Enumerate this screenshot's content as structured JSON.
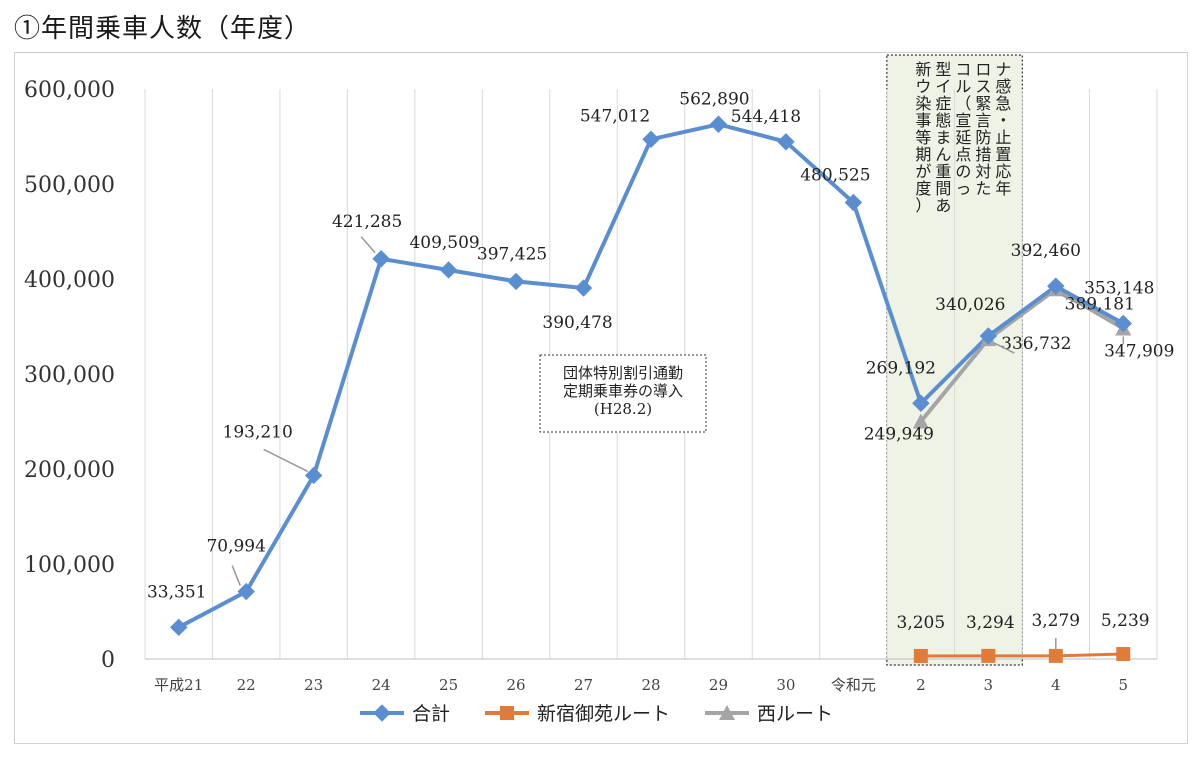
{
  "page": {
    "title": "①年間乗車人数（年度）"
  },
  "chart_data": {
    "type": "line",
    "title": "",
    "xlabel": "",
    "ylabel": "",
    "ylim": [
      0,
      600000
    ],
    "yticks": [
      0,
      100000,
      200000,
      300000,
      400000,
      500000,
      600000
    ],
    "ytick_labels": [
      "0",
      "100,000",
      "200,000",
      "300,000",
      "400,000",
      "500,000",
      "600,000"
    ],
    "categories": [
      "平成21",
      "22",
      "23",
      "24",
      "25",
      "26",
      "27",
      "28",
      "29",
      "30",
      "令和元",
      "2",
      "3",
      "4",
      "5"
    ],
    "grid": "vertical",
    "legend": "bottom",
    "series": [
      {
        "name": "合計",
        "color": "#5b8ed1",
        "marker": "diamond",
        "values": [
          33351,
          70994,
          193210,
          421285,
          409509,
          397425,
          390478,
          547012,
          562890,
          544418,
          480525,
          269192,
          340026,
          392460,
          353148
        ],
        "labels": [
          "33,351",
          "70,994",
          "193,210",
          "421,285",
          "409,509",
          "397,425",
          "390,478",
          "547,012",
          "562,890",
          "544,418",
          "480,525",
          "269,192",
          "340,026",
          "392,460",
          "353,148"
        ]
      },
      {
        "name": "新宿御苑ルート",
        "color": "#e07b39",
        "marker": "square",
        "values": [
          null,
          null,
          null,
          null,
          null,
          null,
          null,
          null,
          null,
          null,
          null,
          3205,
          3294,
          3279,
          5239
        ],
        "labels": [
          "",
          "",
          "",
          "",
          "",
          "",
          "",
          "",
          "",
          "",
          "",
          "3,205",
          "3,294",
          "3,279",
          "5,239"
        ]
      },
      {
        "name": "西ルート",
        "color": "#a5a5a5",
        "marker": "triangle",
        "values": [
          null,
          null,
          null,
          null,
          null,
          null,
          null,
          null,
          null,
          null,
          null,
          249949,
          336732,
          389181,
          347909
        ],
        "labels": [
          "",
          "",
          "",
          "",
          "",
          "",
          "",
          "",
          "",
          "",
          "",
          "249,949",
          "336,732",
          "389,181",
          "347,909"
        ]
      }
    ],
    "annotations": {
      "policy_box": {
        "lines": [
          "団体特別割引通勤",
          "定期乗車券の導入",
          "(H28.2)"
        ]
      },
      "covid_box": {
        "columns": [
          "ナ感急・止置応年",
          "ロス緊言防措対た",
          "コル（宣延点のっ",
          "型イ症態まん重間あ",
          "新ウ染事等期が度）"
        ]
      }
    }
  }
}
